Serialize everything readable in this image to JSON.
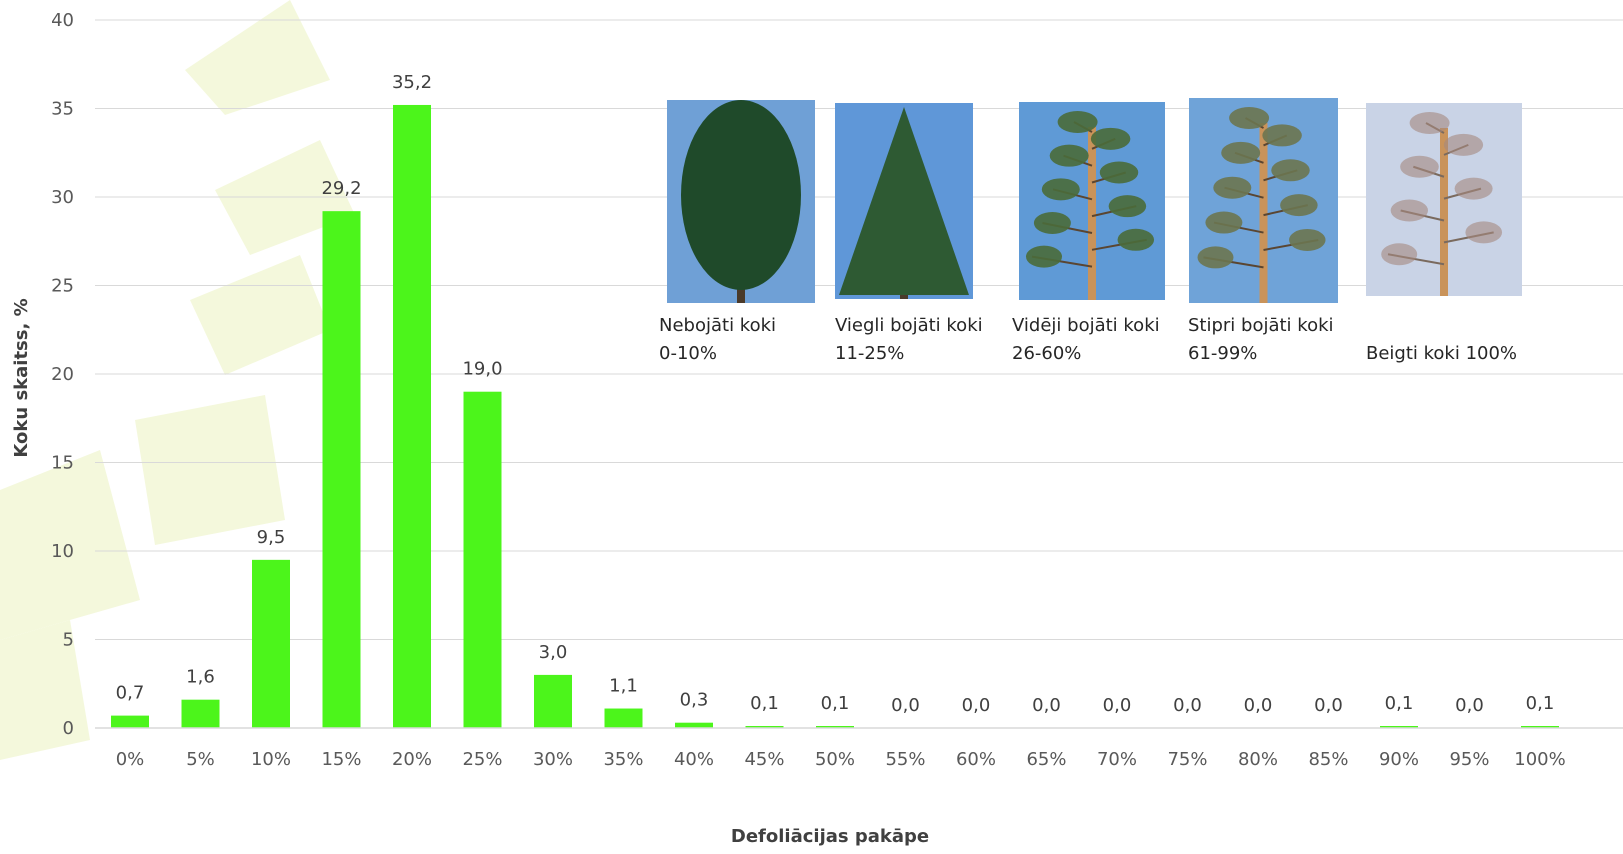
{
  "colors": {
    "bar": "#4cf51b",
    "grid": "#d9d9d9",
    "background_shape": "#f4f8dc"
  },
  "chart_data": {
    "type": "bar",
    "xlabel": "Defoliācijas pakāpe",
    "ylabel": "Koku skaitss, %",
    "ylim": [
      0,
      40
    ],
    "yticks": [
      0,
      5,
      10,
      15,
      20,
      25,
      30,
      35,
      40
    ],
    "ytick_labels": [
      "0",
      "5",
      "10",
      "15",
      "20",
      "25",
      "30",
      "35",
      "40"
    ],
    "categories": [
      "0%",
      "5%",
      "10%",
      "15%",
      "20%",
      "25%",
      "30%",
      "35%",
      "40%",
      "45%",
      "50%",
      "55%",
      "60%",
      "65%",
      "70%",
      "75%",
      "80%",
      "85%",
      "90%",
      "95%",
      "100%"
    ],
    "values": [
      0.7,
      1.6,
      9.5,
      29.2,
      35.2,
      19.0,
      3.0,
      1.1,
      0.3,
      0.1,
      0.1,
      0.0,
      0.0,
      0.0,
      0.0,
      0.0,
      0.0,
      0.0,
      0.1,
      0.0,
      0.1
    ],
    "value_labels": [
      "0,7",
      "1,6",
      "9,5",
      "29,2",
      "35,2",
      "19,0",
      "3,0",
      "1,1",
      "0,3",
      "0,1",
      "0,1",
      "0,0",
      "0,0",
      "0,0",
      "0,0",
      "0,0",
      "0,0",
      "0,0",
      "0,1",
      "0,0",
      "0,1"
    ],
    "grid": true,
    "legend": "none"
  },
  "photos": [
    {
      "icon": "healthy-pine-photo",
      "line1": "Nebojāti koki",
      "line2": "0-10%",
      "sky": "#6fa0d6",
      "foliage": "#1f4a2a"
    },
    {
      "icon": "slightly-damaged-spruce-photo",
      "line1": "Viegli bojāti koki",
      "line2": "11-25%",
      "sky": "#5f97d8",
      "foliage": "#2e5a33"
    },
    {
      "icon": "moderately-damaged-pine-photo",
      "line1": "Vidēji bojāti koki",
      "line2": "26-60%",
      "sky": "#5f9ad6",
      "foliage": "#4a6b3a"
    },
    {
      "icon": "severely-damaged-pine-photo",
      "line1": "Stipri bojāti koki",
      "line2": "61-99%",
      "sky": "#6fa3d8",
      "foliage": "#6b7550"
    },
    {
      "icon": "dead-tree-photo",
      "line1": "Beigti koki 100%",
      "line2": "",
      "sky": "#c9d3e6",
      "foliage": "#a5887e"
    }
  ]
}
